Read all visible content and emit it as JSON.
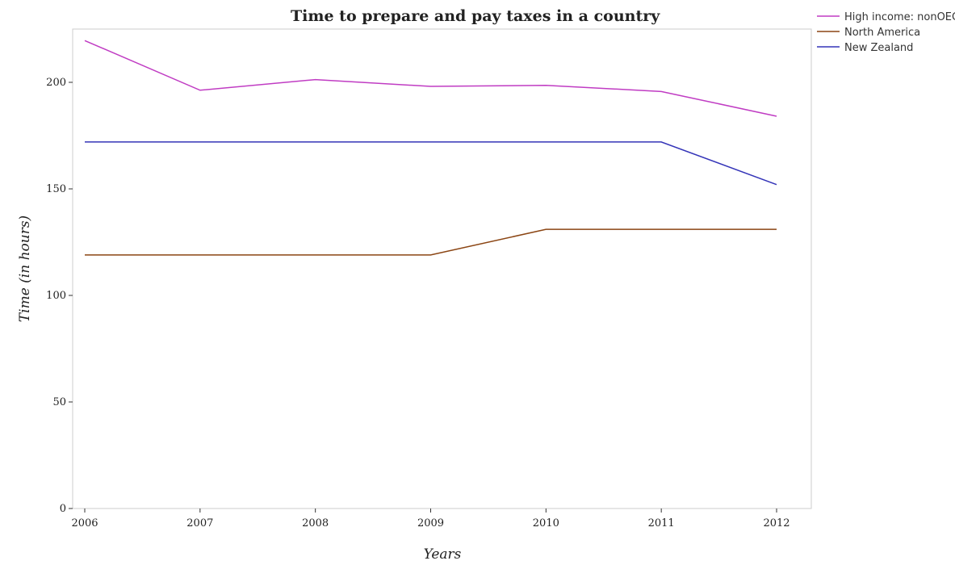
{
  "chart_data": {
    "type": "line",
    "title": "Time to prepare and pay taxes in a country",
    "xlabel": "Years",
    "ylabel": "Time (in hours)",
    "x": [
      "2006",
      "2007",
      "2008",
      "2009",
      "2010",
      "2011",
      "2012"
    ],
    "ylim": [
      0,
      225
    ],
    "yticks": [
      0,
      50,
      100,
      150,
      200
    ],
    "grid": false,
    "legend_position": "top-right",
    "series": [
      {
        "name": "High income: nonOECD",
        "color": "#c03cc3",
        "values": [
          219.6,
          196.3,
          201.3,
          198.1,
          198.6,
          195.7,
          184.1
        ]
      },
      {
        "name": "North America",
        "color": "#8b4513",
        "values": [
          119,
          119,
          119,
          119,
          131,
          131,
          131
        ]
      },
      {
        "name": "New Zealand",
        "color": "#3434b8",
        "values": [
          172,
          172,
          172,
          172,
          172,
          172,
          152
        ]
      }
    ]
  }
}
